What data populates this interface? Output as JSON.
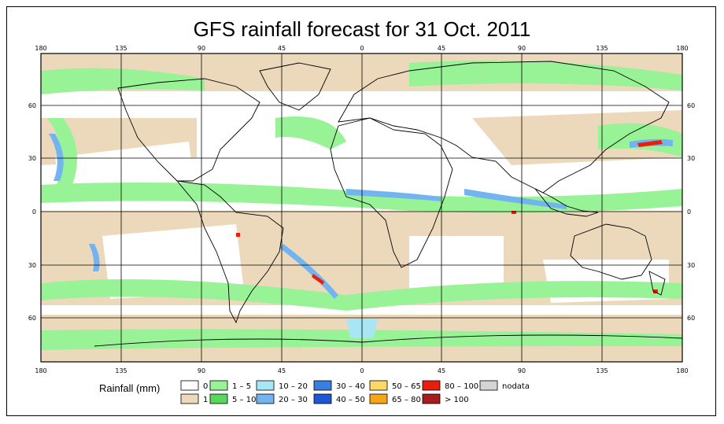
{
  "title": "GFS rainfall forecast for 31 Oct. 2011",
  "map": {
    "lon_labels": [
      "180",
      "135",
      "90",
      "45",
      "0",
      "45",
      "90",
      "135",
      "180"
    ],
    "lat_labels": [
      "60",
      "30",
      "0",
      "30",
      "60"
    ]
  },
  "legend": {
    "title": "Rainfall (mm)",
    "items": [
      {
        "label": "0",
        "color": "#ffffff"
      },
      {
        "label": "1",
        "color": "#ecd9bc"
      },
      {
        "label": "1 – 5",
        "color": "#98f296"
      },
      {
        "label": "5 – 10",
        "color": "#58d85a"
      },
      {
        "label": "10 – 20",
        "color": "#a8e6f4"
      },
      {
        "label": "20 – 30",
        "color": "#72b4f0"
      },
      {
        "label": "30 – 40",
        "color": "#3a7ee0"
      },
      {
        "label": "40 – 50",
        "color": "#1e56d8"
      },
      {
        "label": "50 – 65",
        "color": "#fcd866"
      },
      {
        "label": "65 – 80",
        "color": "#f9a317"
      },
      {
        "label": "80 – 100",
        "color": "#ea1e0c"
      },
      {
        "label": "> 100",
        "color": "#a81c1c"
      },
      {
        "label": "nodata",
        "color": "#d4d4d4"
      }
    ]
  }
}
